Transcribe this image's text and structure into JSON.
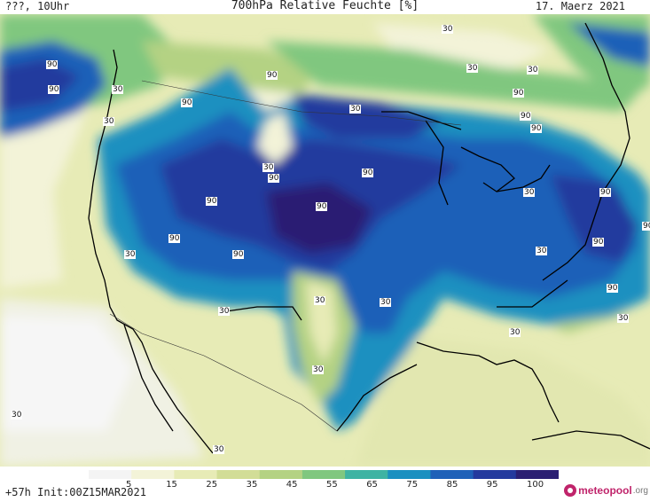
{
  "header": {
    "left": "???, 10Uhr",
    "title": "700hPa Relative Feuchte [%]",
    "right": "17. Maerz 2021"
  },
  "footer": {
    "run_info": "+57h  Init:00Z15MAR2021",
    "brand": "meteopool",
    "brand_suffix": ".org"
  },
  "legend": {
    "ticks": [
      "5",
      "15",
      "25",
      "35",
      "45",
      "55",
      "65",
      "75",
      "85",
      "95",
      "100"
    ],
    "colors": [
      "#f4f4f4",
      "#f3f3d8",
      "#e7ebb6",
      "#d2dd97",
      "#b4d283",
      "#80c77f",
      "#3eb3a3",
      "#1a90c0",
      "#1f61b8",
      "#243a9e",
      "#2b1f73"
    ]
  },
  "contour_labels": [
    {
      "text": "90"
    },
    {
      "text": "90"
    },
    {
      "text": "30"
    },
    {
      "text": "30"
    },
    {
      "text": "90"
    },
    {
      "text": "90"
    },
    {
      "text": "30"
    },
    {
      "text": "30"
    },
    {
      "text": "90"
    },
    {
      "text": "90"
    },
    {
      "text": "90"
    },
    {
      "text": "90"
    },
    {
      "text": "90"
    },
    {
      "text": "90"
    },
    {
      "text": "30"
    },
    {
      "text": "90"
    },
    {
      "text": "90"
    },
    {
      "text": "30"
    },
    {
      "text": "30"
    },
    {
      "text": "30"
    },
    {
      "text": "30"
    },
    {
      "text": "30"
    },
    {
      "text": "90"
    },
    {
      "text": "90"
    },
    {
      "text": "90"
    },
    {
      "text": "30"
    },
    {
      "text": "30"
    },
    {
      "text": "30"
    },
    {
      "text": "30"
    },
    {
      "text": "90"
    },
    {
      "text": "30"
    },
    {
      "text": "90"
    },
    {
      "text": "30"
    },
    {
      "text": "30"
    },
    {
      "text": "30"
    }
  ]
}
